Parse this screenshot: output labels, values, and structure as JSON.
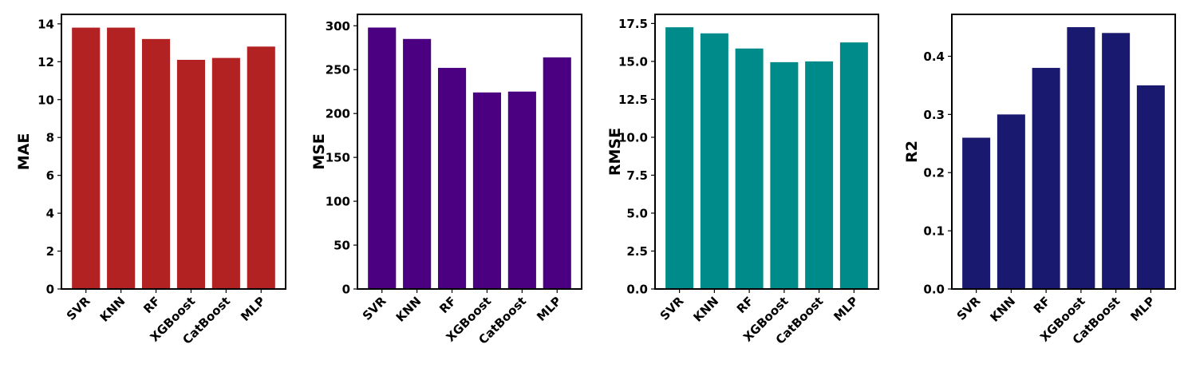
{
  "chart_data": [
    {
      "type": "bar",
      "categories": [
        "SVR",
        "KNN",
        "RF",
        "XGBoost",
        "CatBoost",
        "MLP"
      ],
      "values": [
        13.8,
        13.8,
        13.2,
        12.1,
        12.2,
        12.8
      ],
      "ylabel": "MAE",
      "ylim": [
        0,
        14.5
      ],
      "yticks": [
        0,
        2,
        4,
        6,
        8,
        10,
        12,
        14
      ],
      "ytick_labels": [
        "0",
        "2",
        "4",
        "6",
        "8",
        "10",
        "12",
        "14"
      ],
      "color": "#b22222",
      "grid": false
    },
    {
      "type": "bar",
      "categories": [
        "SVR",
        "KNN",
        "RF",
        "XGBoost",
        "CatBoost",
        "MLP"
      ],
      "values": [
        298,
        285,
        252,
        224,
        225,
        264
      ],
      "ylabel": "MSE",
      "ylim": [
        0,
        313
      ],
      "yticks": [
        0,
        50,
        100,
        150,
        200,
        250,
        300
      ],
      "ytick_labels": [
        "0",
        "50",
        "100",
        "150",
        "200",
        "250",
        "300"
      ],
      "color": "#4b0082",
      "grid": false
    },
    {
      "type": "bar",
      "categories": [
        "SVR",
        "KNN",
        "RF",
        "XGBoost",
        "CatBoost",
        "MLP"
      ],
      "values": [
        17.25,
        16.85,
        15.85,
        14.95,
        15.0,
        16.25
      ],
      "ylabel": "RMSE",
      "ylim": [
        0,
        18.1
      ],
      "yticks": [
        0,
        2.5,
        5,
        7.5,
        10,
        12.5,
        15,
        17.5
      ],
      "ytick_labels": [
        "0.0",
        "2.5",
        "5.0",
        "7.5",
        "10.0",
        "12.5",
        "15.0",
        "17.5"
      ],
      "color": "#008b8b",
      "grid": false
    },
    {
      "type": "bar",
      "categories": [
        "SVR",
        "KNN",
        "RF",
        "XGBoost",
        "CatBoost",
        "MLP"
      ],
      "values": [
        0.26,
        0.3,
        0.38,
        0.45,
        0.44,
        0.35
      ],
      "ylabel": "R2",
      "ylim": [
        0,
        0.472
      ],
      "yticks": [
        0,
        0.1,
        0.2,
        0.3,
        0.4
      ],
      "ytick_labels": [
        "0.0",
        "0.1",
        "0.2",
        "0.3",
        "0.4"
      ],
      "color": "#191970",
      "grid": false
    }
  ]
}
